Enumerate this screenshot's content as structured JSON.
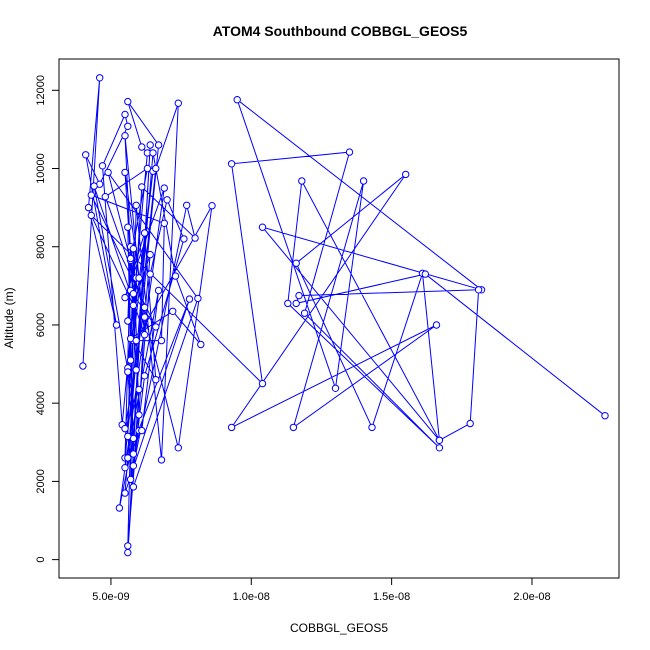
{
  "chart_data": {
    "type": "line",
    "title": "ATOM4 Southbound COBBGL_GEOS5",
    "xlabel": "COBBGL_GEOS5",
    "ylabel": "Altitude (m)",
    "xlim": [
      3.15e-09,
      2.31e-08
    ],
    "ylim": [
      -470,
      12800
    ],
    "xticks": [
      5e-09,
      1e-08,
      1.5e-08,
      2e-08
    ],
    "xtick_labels": [
      "5.0e-09",
      "1.0e-08",
      "1.5e-08",
      "2.0e-08"
    ],
    "yticks": [
      0,
      2000,
      4000,
      6000,
      8000,
      10000,
      12000
    ],
    "ytick_labels": [
      "0",
      "2000",
      "4000",
      "6000",
      "8000",
      "10000",
      "12000"
    ],
    "grid": false,
    "marker": "open-circle",
    "line_color": "#0000ff",
    "series": [
      {
        "x": [
          4e-09,
          4.6e-09,
          4.2e-09,
          5.2e-09,
          4.1e-09,
          4.6e-09,
          5.6e-09,
          5.5e-09,
          4.7e-09,
          5.4e-09,
          6.3e-09,
          6.1e-09,
          5.6e-09,
          6.7e-09,
          5.9e-09,
          5.5e-09,
          6.2e-09,
          4.4e-09,
          6e-09,
          5.7e-09,
          5.9e-09,
          5.6e-09,
          6.5e-09,
          5.8e-09,
          6.6e-09,
          6.2e-09,
          5.5e-09,
          6.9e-09,
          5.3e-09,
          5.8e-09,
          6.4e-09,
          5.6e-09,
          6e-09,
          5.5e-09,
          6.2e-09,
          4.8e-09,
          6.3e-09,
          5.7e-09,
          5.5e-09,
          6.6e-09,
          7.4e-09,
          6.8e-09,
          5.9e-09,
          5.6e-09,
          6.4e-09,
          7e-09,
          7.6e-09,
          6.2e-09,
          5.8e-09,
          7.7e-09,
          8e-09,
          6.1e-09,
          5.5e-09,
          6.7e-09,
          6.1e-09,
          5.6e-09,
          7.8e-09,
          5.5e-09,
          6.5e-09,
          7.3e-09,
          8.2e-09,
          7.2e-09,
          5.7e-09,
          5.6e-09,
          5.8e-09,
          8.1e-09,
          4.9e-09,
          7.4e-09,
          8.6e-09,
          5.9e-09,
          6.8e-09,
          6.9e-09,
          4.3e-09,
          6.6e-09,
          5.7e-09,
          6e-09,
          5.5e-09,
          5.7e-09,
          5.6e-09,
          5.7e-09,
          5.8e-09,
          5.6e-09,
          5.8e-09,
          5.6e-09,
          5.7e-09,
          5.8e-09,
          6e-09,
          6.2e-09,
          6.4e-09,
          5.8e-09,
          4.3e-09,
          1.04e-08,
          9.3e-09,
          1.35e-08,
          1.19e-08,
          1.67e-08,
          1.13e-08,
          1.18e-08,
          1.67e-08,
          1.04e-08,
          1.82e-08,
          9.5e-09,
          1.3e-08,
          1.4e-08,
          1.15e-08,
          1.66e-08,
          9.3e-09,
          1.55e-08,
          1.16e-08,
          1.43e-08,
          1.61e-08,
          1.67e-08,
          1.78e-08,
          1.81e-08,
          1.17e-08,
          1.16e-08,
          1.62e-08,
          2.26e-08
        ],
        "y": [
          4950,
          12320,
          9000,
          6000,
          10350,
          9600,
          11080,
          11380,
          10070,
          3450,
          10400,
          10550,
          11710,
          10600,
          4850,
          10840,
          5750,
          9550,
          3300,
          2050,
          7200,
          4900,
          9930,
          5600,
          4600,
          8350,
          6700,
          9500,
          1320,
          3100,
          10600,
          180,
          4350,
          3350,
          6450,
          9280,
          10000,
          7650,
          2600,
          10000,
          11670,
          2550,
          9060,
          350,
          7300,
          9200,
          8200,
          4700,
          2400,
          9060,
          8220,
          9530,
          2350,
          6880,
          3300,
          2600,
          6660,
          1700,
          10400,
          7250,
          5500,
          6350,
          5650,
          3150,
          1860,
          6680,
          9900,
          2860,
          9050,
          5600,
          5600,
          8600,
          9320,
          5950,
          6880,
          7200,
          9900,
          7700,
          6100,
          8000,
          6800,
          4800,
          2700,
          8500,
          5100,
          7950,
          3700,
          6200,
          7800,
          6500,
          8800,
          4500,
          10120,
          10420,
          6300,
          2860,
          6550,
          9680,
          3050,
          8500,
          6900,
          11760,
          4380,
          9680,
          3380,
          6000,
          3380,
          9850,
          7580,
          3380,
          7320,
          3050,
          3480,
          6900,
          6750,
          6550,
          7300,
          3680
        ]
      }
    ]
  }
}
